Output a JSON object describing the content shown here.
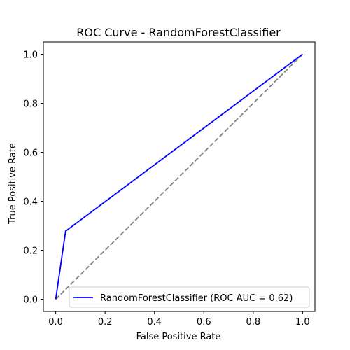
{
  "chart_data": {
    "type": "line",
    "title": "ROC Curve - RandomForestClassifier",
    "xlabel": "False Positive Rate",
    "ylabel": "True Positive Rate",
    "xlim": [
      -0.05,
      1.05
    ],
    "ylim": [
      -0.05,
      1.05
    ],
    "xticks": [
      0.0,
      0.2,
      0.4,
      0.6,
      0.8,
      1.0
    ],
    "yticks": [
      0.0,
      0.2,
      0.4,
      0.6,
      0.8,
      1.0
    ],
    "xtick_labels": [
      "0.0",
      "0.2",
      "0.4",
      "0.6",
      "0.8",
      "1.0"
    ],
    "ytick_labels": [
      "0.0",
      "0.2",
      "0.4",
      "0.6",
      "0.8",
      "1.0"
    ],
    "grid": false,
    "legend_position": "lower-right",
    "series": [
      {
        "name": "RandomForestClassifier (ROC AUC = 0.62)",
        "x": [
          0.0,
          0.04,
          1.0
        ],
        "y": [
          0.0,
          0.278,
          1.0
        ],
        "color": "#0000ff",
        "style": "solid"
      },
      {
        "x": [
          0.0,
          1.0
        ],
        "y": [
          0.0,
          1.0
        ],
        "color": "#808080",
        "style": "dashed"
      }
    ]
  }
}
